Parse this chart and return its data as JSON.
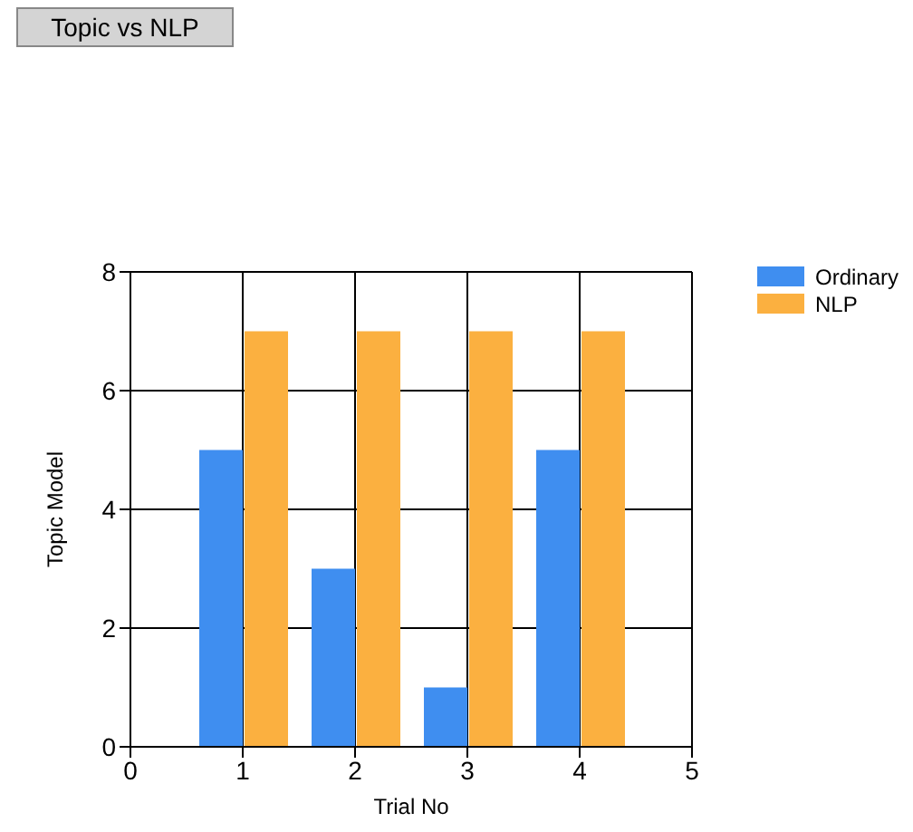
{
  "chart_data": {
    "type": "bar",
    "title": "Topic vs NLP",
    "xlabel": "Trial No",
    "ylabel": "Topic Model",
    "x": [
      1,
      2,
      3,
      4
    ],
    "series": [
      {
        "name": "Ordinary",
        "color": "#3f8ef0",
        "values": [
          5,
          3,
          1,
          5
        ]
      },
      {
        "name": "NLP",
        "color": "#fbb040",
        "values": [
          7,
          7,
          7,
          7
        ]
      }
    ],
    "xlim": [
      0,
      5
    ],
    "xticks": [
      0,
      1,
      2,
      3,
      4,
      5
    ],
    "ylim": [
      0,
      8
    ],
    "yticks": [
      0,
      2,
      4,
      6,
      8
    ],
    "grid": true,
    "legend": "top right"
  }
}
